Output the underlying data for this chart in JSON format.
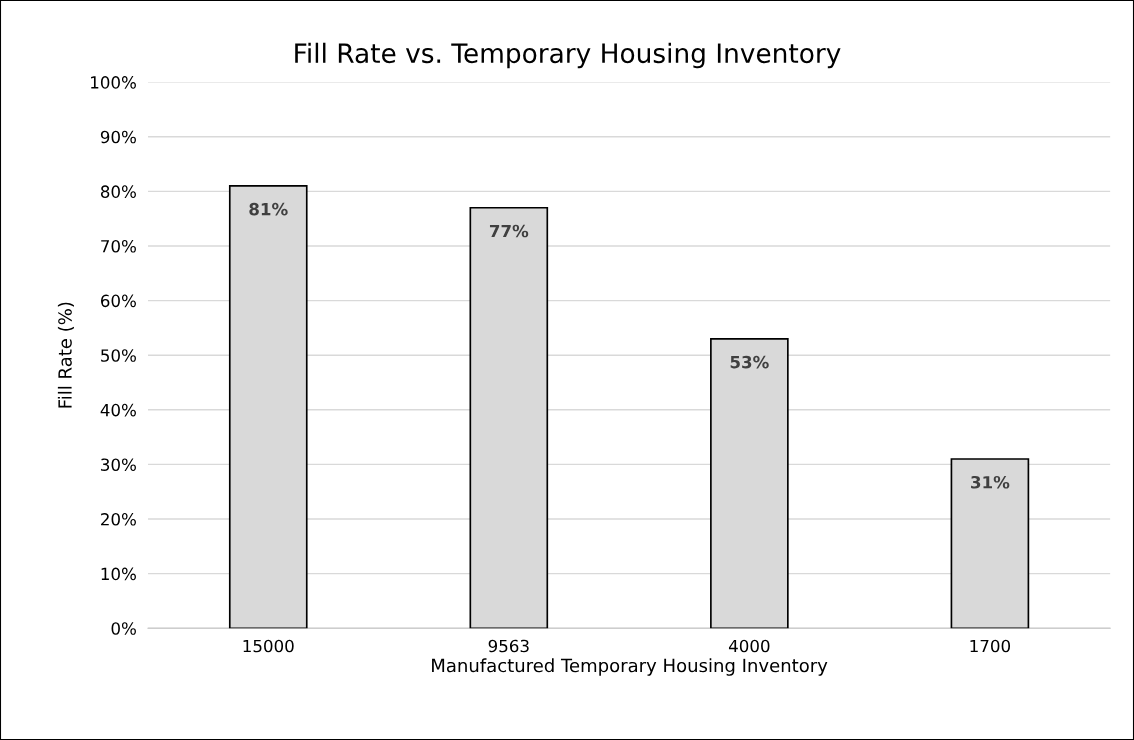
{
  "chart_data": {
    "type": "bar",
    "title": "Fill Rate vs. Temporary Housing Inventory",
    "xlabel": "Manufactured Temporary Housing Inventory",
    "ylabel": "Fill Rate (%)",
    "categories": [
      "15000",
      "9563",
      "4000",
      "1700"
    ],
    "values": [
      81,
      77,
      53,
      31
    ],
    "color": "#d9d9d9",
    "value_labels": [
      "81%",
      "77%",
      "53%",
      "31%"
    ],
    "ylim": [
      0,
      100
    ],
    "yticks": [
      {
        "value": 0,
        "label": "0%"
      },
      {
        "value": 10,
        "label": "10%"
      },
      {
        "value": 20,
        "label": "20%"
      },
      {
        "value": 30,
        "label": "30%"
      },
      {
        "value": 40,
        "label": "40%"
      },
      {
        "value": 50,
        "label": "50%"
      },
      {
        "value": 60,
        "label": "60%"
      },
      {
        "value": 70,
        "label": "70%"
      },
      {
        "value": 80,
        "label": "80%"
      },
      {
        "value": 90,
        "label": "90%"
      },
      {
        "value": 100,
        "label": "100%"
      }
    ],
    "grid": "y",
    "legend": false
  }
}
